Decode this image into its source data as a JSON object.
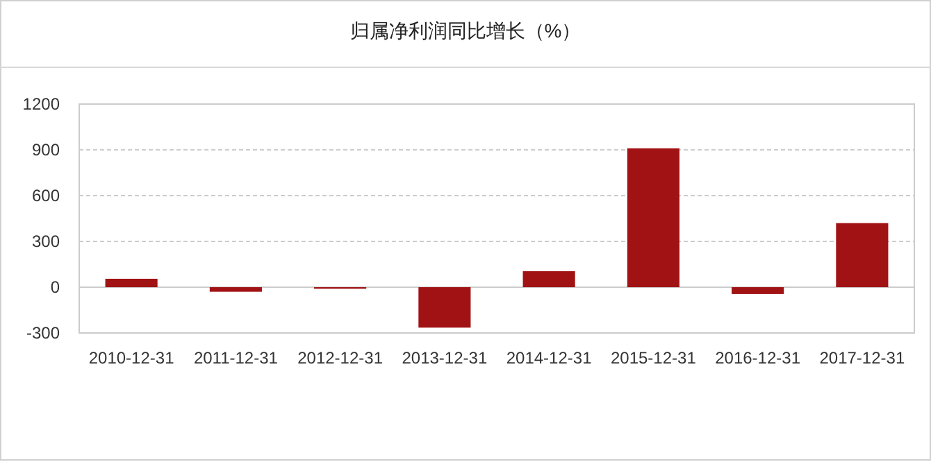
{
  "chart_data": {
    "type": "bar",
    "title": "归属净利润同比增长（%）",
    "categories": [
      "2010-12-31",
      "2011-12-31",
      "2012-12-31",
      "2013-12-31",
      "2014-12-31",
      "2015-12-31",
      "2016-12-31",
      "2017-12-31"
    ],
    "values": [
      55,
      -30,
      -10,
      -265,
      105,
      910,
      -45,
      420
    ],
    "color": "#a11214",
    "ylim": [
      -300,
      1200
    ],
    "yticks": [
      -300,
      0,
      300,
      600,
      900,
      1200
    ],
    "grid": "y"
  }
}
